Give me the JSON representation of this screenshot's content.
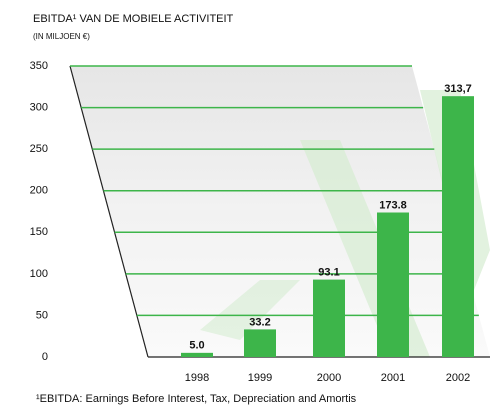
{
  "chart_data": {
    "type": "bar",
    "title": "EBITDA¹ VAN DE MOBIELE ACTIVITEIT",
    "subtitle": "(IN MILJOEN €)",
    "categories": [
      "1998",
      "1999",
      "2000",
      "2001",
      "2002"
    ],
    "values": [
      5.0,
      33.2,
      93.1,
      173.8,
      313.7
    ],
    "value_labels": [
      "5.0",
      "33.2",
      "93.1",
      "173.8",
      "313,7"
    ],
    "color": "#3db54a",
    "ylim": [
      0,
      350
    ],
    "yticks": [
      0,
      50,
      100,
      150,
      200,
      250,
      300,
      350
    ],
    "grid": true,
    "footnote": "¹EBITDA: Earnings Before Interest, Tax, Depreciation and Amortis"
  }
}
